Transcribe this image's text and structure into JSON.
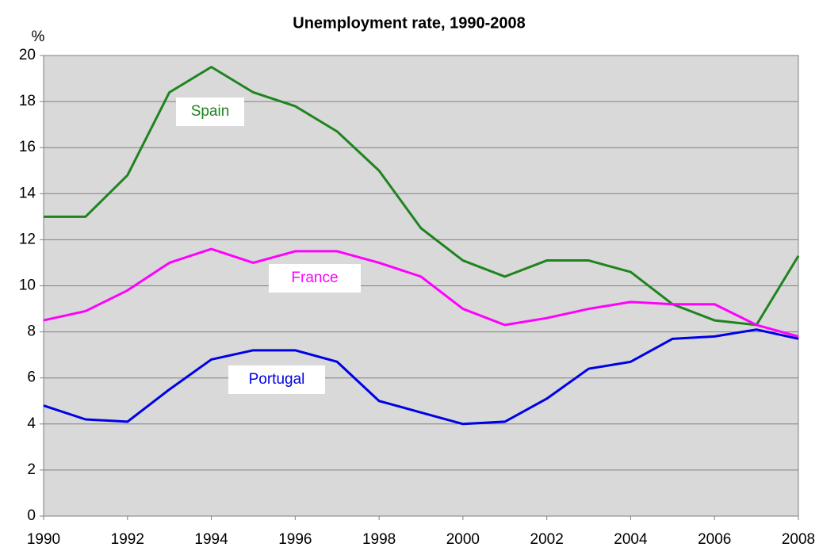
{
  "chart_data": {
    "type": "line",
    "title": "Unemployment rate, 1990-2008",
    "y_label": "%",
    "x": [
      1990,
      1991,
      1992,
      1993,
      1994,
      1995,
      1996,
      1997,
      1998,
      1999,
      2000,
      2001,
      2002,
      2003,
      2004,
      2005,
      2006,
      2007,
      2008
    ],
    "series": [
      {
        "name": "Spain",
        "color": "#1f841f",
        "values": [
          13.0,
          13.0,
          14.8,
          18.4,
          19.5,
          18.4,
          17.8,
          16.7,
          15.0,
          12.5,
          11.1,
          10.4,
          11.1,
          11.1,
          10.6,
          9.2,
          8.5,
          8.3,
          11.3
        ]
      },
      {
        "name": "France",
        "color": "#ff00ff",
        "values": [
          8.5,
          8.9,
          9.8,
          11.0,
          11.6,
          11.0,
          11.5,
          11.5,
          11.0,
          10.4,
          9.0,
          8.3,
          8.6,
          9.0,
          9.3,
          9.2,
          9.2,
          8.3,
          7.8
        ]
      },
      {
        "name": "Portugal",
        "color": "#0000e6",
        "values": [
          4.8,
          4.2,
          4.1,
          5.5,
          6.8,
          7.2,
          7.2,
          6.7,
          5.0,
          4.5,
          4.0,
          4.1,
          5.1,
          6.4,
          6.7,
          7.7,
          7.8,
          8.1,
          7.7
        ]
      }
    ],
    "xlim": [
      1990,
      2008
    ],
    "xticks": [
      1990,
      1992,
      1994,
      1996,
      1998,
      2000,
      2002,
      2004,
      2006,
      2008
    ],
    "ylim": [
      0,
      20
    ],
    "yticks": [
      0,
      2,
      4,
      6,
      8,
      10,
      12,
      14,
      16,
      18,
      20
    ],
    "grid": true
  }
}
